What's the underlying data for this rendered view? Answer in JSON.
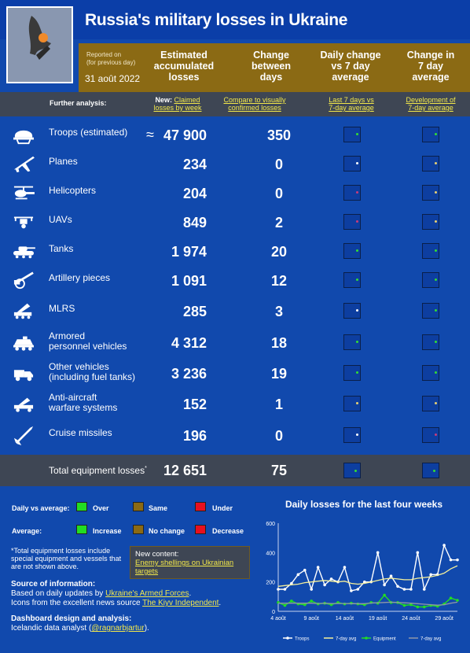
{
  "title": "Russia's military losses in Ukraine",
  "header": {
    "reported_label": "Reported on",
    "reported_sub": "(for previous day)",
    "date": "31 août 2022",
    "col1": [
      "Estimated",
      "accumulated",
      "losses"
    ],
    "col2": [
      "Change",
      "between",
      "days"
    ],
    "col3": [
      "Daily change",
      "vs 7 day",
      "average"
    ],
    "col4": [
      "Change in",
      "7 day",
      "average"
    ]
  },
  "further": {
    "label": "Further analysis:",
    "link1_pre": "New:",
    "link1": [
      "Claimed",
      "losses by week"
    ],
    "link2": [
      "Compare to visually",
      "confirmed losses"
    ],
    "link3": [
      "Last 7 days vs",
      "7-day average"
    ],
    "link4": [
      "Development of",
      "7-day average"
    ]
  },
  "rows": [
    {
      "icon": "helmet-icon",
      "label": [
        "Troops (estimated)"
      ],
      "approx": "≈",
      "value": "47 900",
      "change": "350",
      "dot1": "#33dd33",
      "dot2": "#33dd33"
    },
    {
      "icon": "plane-icon",
      "label": [
        "Planes"
      ],
      "value": "234",
      "change": "0",
      "dot1": "#ffffff",
      "dot2": "#e8d070"
    },
    {
      "icon": "helicopter-icon",
      "label": [
        "Helicopters"
      ],
      "value": "204",
      "change": "0",
      "dot1": "#c83b7a",
      "dot2": "#e8d070"
    },
    {
      "icon": "drone-icon",
      "label": [
        "UAVs"
      ],
      "value": "849",
      "change": "2",
      "dot1": "#c83b7a",
      "dot2": "#e8d070"
    },
    {
      "icon": "tank-icon",
      "label": [
        "Tanks"
      ],
      "value": "1 974",
      "change": "20",
      "dot1": "#33dd33",
      "dot2": "#33dd33"
    },
    {
      "icon": "artillery-icon",
      "label": [
        "Artillery pieces"
      ],
      "value": "1 091",
      "change": "12",
      "dot1": "#33dd33",
      "dot2": "#33dd33"
    },
    {
      "icon": "mlrs-icon",
      "label": [
        "MLRS"
      ],
      "value": "285",
      "change": "3",
      "dot1": "#ffffff",
      "dot2": "#33dd33"
    },
    {
      "icon": "apc-icon",
      "label": [
        "Armored",
        "personnel vehicles"
      ],
      "value": "4 312",
      "change": "18",
      "dot1": "#33dd33",
      "dot2": "#33dd33"
    },
    {
      "icon": "vehicle-icon",
      "label": [
        "Other vehicles",
        "(including fuel tanks)"
      ],
      "value": "3 236",
      "change": "19",
      "dot1": "#33dd33",
      "dot2": "#33dd33"
    },
    {
      "icon": "aa-system-icon",
      "label": [
        "Anti-aircraft",
        "warfare systems"
      ],
      "value": "152",
      "change": "1",
      "dot1": "#e8d070",
      "dot2": "#e8d070"
    },
    {
      "icon": "missile-icon",
      "label": [
        "Cruise missiles"
      ],
      "value": "196",
      "change": "0",
      "dot1": "#ffffff",
      "dot2": "#c83b7a"
    }
  ],
  "total": {
    "label": "Total equipment losses",
    "sup": "*",
    "value": "12 651",
    "change": "75",
    "dot1": "#33dd33",
    "dot2": "#33dd33"
  },
  "legend": {
    "daily_label": "Daily vs average:",
    "avg_label": "Average:",
    "over": "Over",
    "same": "Same",
    "under": "Under",
    "increase": "Increase",
    "nochange": "No change",
    "decrease": "Decrease",
    "green": "#22dd22",
    "brown": "#8b6a14",
    "red": "#e8101e"
  },
  "note": "*Total equipment losses include special equipment and vessels that are not shown above.",
  "new_content": {
    "title": "New content:",
    "link": "Enemy shellings on Ukrainian targets"
  },
  "source": {
    "heading": "Source of information:",
    "line1_pre": "Based on daily updates by ",
    "line1_link": "Ukraine's Armed Forces",
    "line1_post": ".",
    "line2_pre": "Icons from the excellent news source ",
    "line2_link": "The Kiyv Independent",
    "line2_post": ".",
    "design_heading": "Dashboard design and analysis:",
    "design_pre": "Icelandic data analyst (",
    "design_link": "@ragnarbjartur",
    "design_post": ")."
  },
  "chart_data": {
    "type": "line",
    "title": "Daily losses for the last four weeks",
    "x": [
      "4 août",
      "5 août",
      "6 août",
      "7 août",
      "8 août",
      "9 août",
      "10 août",
      "11 août",
      "12 août",
      "13 août",
      "14 août",
      "15 août",
      "16 août",
      "17 août",
      "18 août",
      "19 août",
      "20 août",
      "21 août",
      "22 août",
      "23 août",
      "24 août",
      "25 août",
      "26 août",
      "27 août",
      "28 août",
      "29 août",
      "30 août",
      "31 août"
    ],
    "xticks": [
      "4 août",
      "9 août",
      "14 août",
      "19 août",
      "24 août",
      "29 août"
    ],
    "ylim": [
      0,
      600
    ],
    "yticks": [
      0,
      200,
      400,
      600
    ],
    "series": [
      {
        "name": "Troops",
        "color": "#ffffff",
        "values": [
          150,
          150,
          190,
          250,
          280,
          150,
          300,
          180,
          220,
          200,
          300,
          140,
          150,
          200,
          200,
          400,
          180,
          240,
          170,
          150,
          150,
          400,
          150,
          250,
          250,
          450,
          350,
          350
        ]
      },
      {
        "name": "7-day avg",
        "color": "#f5f09a",
        "values": [
          170,
          175,
          180,
          185,
          195,
          200,
          205,
          210,
          205,
          200,
          205,
          190,
          185,
          190,
          200,
          210,
          220,
          225,
          220,
          215,
          215,
          225,
          230,
          235,
          245,
          260,
          290,
          310
        ]
      },
      {
        "name": "Equipment",
        "color": "#22dd22",
        "values": [
          60,
          40,
          70,
          50,
          45,
          70,
          50,
          55,
          45,
          60,
          50,
          55,
          50,
          45,
          60,
          55,
          110,
          60,
          60,
          40,
          45,
          30,
          30,
          40,
          35,
          50,
          90,
          75
        ]
      },
      {
        "name": "7-day avg",
        "color": "#8f97a8",
        "values": [
          55,
          55,
          55,
          55,
          55,
          55,
          53,
          55,
          53,
          53,
          53,
          52,
          52,
          52,
          56,
          58,
          60,
          62,
          60,
          58,
          55,
          52,
          48,
          45,
          42,
          45,
          55,
          62
        ]
      }
    ],
    "legend_position": "bottom",
    "grid": false
  }
}
